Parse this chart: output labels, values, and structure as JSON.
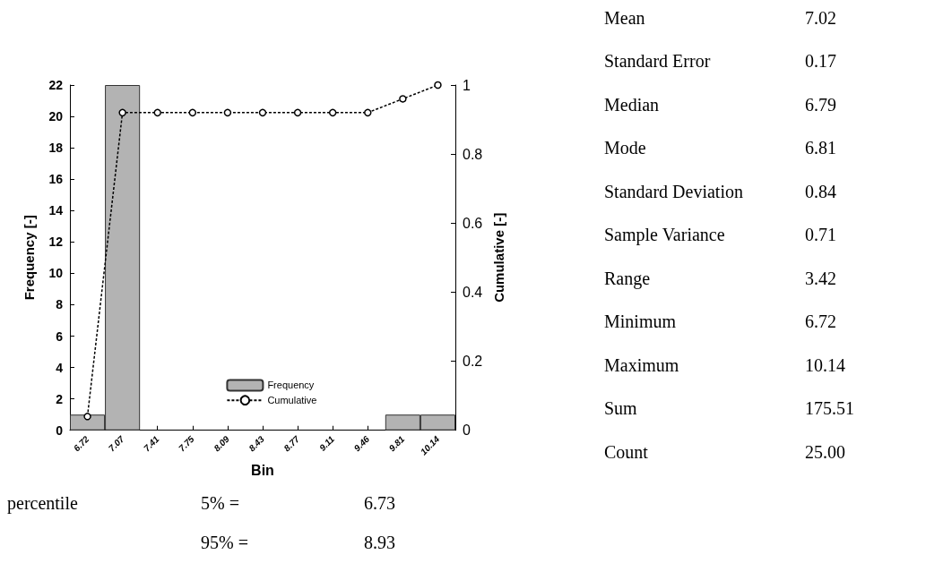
{
  "chart_data": {
    "type": "bar",
    "xlabel": "Bin",
    "ylabel": "Frequency [-]",
    "y2label": "Cumulative [-]",
    "categories": [
      "6.72",
      "7.07",
      "7.41",
      "7.75",
      "8.09",
      "8.43",
      "8.77",
      "9.11",
      "9.46",
      "9.81",
      "10.14"
    ],
    "series": [
      {
        "name": "Frequency",
        "color": "#b3b3b3",
        "values": [
          1,
          22,
          0,
          0,
          0,
          0,
          0,
          0,
          0,
          1,
          1
        ]
      },
      {
        "name": "Cumulative",
        "type": "line",
        "axis": "y2",
        "color": "#000000",
        "values": [
          0.04,
          0.92,
          0.92,
          0.92,
          0.92,
          0.92,
          0.92,
          0.92,
          0.92,
          0.96,
          1
        ]
      }
    ],
    "ylim": [
      0,
      22
    ],
    "yticks": [
      0,
      2,
      4,
      6,
      8,
      10,
      12,
      14,
      16,
      18,
      20,
      22
    ],
    "y2lim": [
      0,
      1
    ],
    "y2ticks": [
      0,
      0.2,
      0.4,
      0.6,
      0.8,
      1
    ],
    "grid": false,
    "legend": "bottom",
    "marker": "circle",
    "line_style": "dashed",
    "annotations": [
      "Mean 7.02",
      "Standard Error 0.17",
      "Median 6.79",
      "Mode 6.81",
      "Standard Deviation 0.84",
      "Sample Variance 0.71",
      "Range 3.42",
      "Minimum 6.72",
      "Maximum 10.14",
      "Sum 175.51",
      "Count 25.00",
      "percentile 5% = 6.73",
      "95% = 8.93"
    ]
  }
}
